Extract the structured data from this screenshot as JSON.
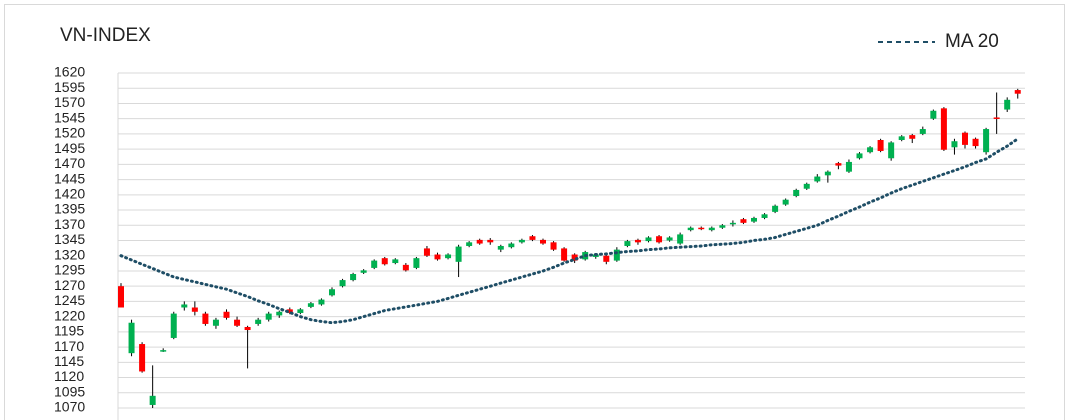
{
  "chart_data": {
    "type": "candlestick",
    "title": "VN-INDEX",
    "ylim": [
      1070,
      1620
    ],
    "yticks": [
      1620,
      1595,
      1570,
      1545,
      1520,
      1495,
      1470,
      1445,
      1420,
      1395,
      1370,
      1345,
      1320,
      1295,
      1270,
      1245,
      1220,
      1195,
      1170,
      1145,
      1120,
      1095,
      1070
    ],
    "grid": true,
    "legend": "top-right",
    "up_color": "#00b050",
    "down_color": "#ff0000",
    "open": [
      1270,
      1160,
      1175,
      1075,
      1163,
      1185,
      1235,
      1235,
      1225,
      1205,
      1228,
      1215,
      1203,
      1208,
      1215,
      1222,
      1232,
      1226,
      1236,
      1240,
      1255,
      1270,
      1280,
      1292,
      1300,
      1316,
      1308,
      1305,
      1300,
      1332,
      1322,
      1316,
      1310,
      1336,
      1346,
      1346,
      1330,
      1334,
      1342,
      1352,
      1346,
      1342,
      1332,
      1322,
      1314,
      1318,
      1320,
      1312,
      1336,
      1346,
      1344,
      1352,
      1345,
      1340,
      1362,
      1366,
      1362,
      1366,
      1372,
      1380,
      1376,
      1382,
      1392,
      1404,
      1418,
      1430,
      1442,
      1452,
      1472,
      1458,
      1480,
      1490,
      1510,
      1480,
      1510,
      1518,
      1520,
      1545,
      1562,
      1498,
      1522,
      1512,
      1490,
      1547,
      1560,
      1592
    ],
    "high": [
      1275,
      1215,
      1178,
      1140,
      1168,
      1228,
      1245,
      1245,
      1228,
      1218,
      1232,
      1220,
      1205,
      1218,
      1228,
      1230,
      1235,
      1234,
      1244,
      1250,
      1268,
      1282,
      1292,
      1298,
      1314,
      1318,
      1316,
      1308,
      1318,
      1336,
      1325,
      1324,
      1338,
      1344,
      1348,
      1349,
      1338,
      1342,
      1348,
      1354,
      1348,
      1344,
      1334,
      1324,
      1328,
      1324,
      1324,
      1334,
      1346,
      1348,
      1352,
      1354,
      1352,
      1358,
      1368,
      1368,
      1368,
      1372,
      1378,
      1382,
      1384,
      1390,
      1404,
      1414,
      1430,
      1440,
      1454,
      1460,
      1474,
      1478,
      1490,
      1500,
      1512,
      1508,
      1518,
      1520,
      1532,
      1560,
      1564,
      1512,
      1524,
      1514,
      1530,
      1588,
      1580,
      1594
    ],
    "low": [
      1235,
      1155,
      1128,
      1070,
      1162,
      1183,
      1230,
      1222,
      1205,
      1200,
      1215,
      1203,
      1135,
      1205,
      1212,
      1218,
      1224,
      1224,
      1234,
      1238,
      1253,
      1268,
      1278,
      1290,
      1298,
      1304,
      1306,
      1294,
      1298,
      1318,
      1312,
      1314,
      1285,
      1334,
      1338,
      1338,
      1326,
      1332,
      1340,
      1344,
      1338,
      1328,
      1310,
      1308,
      1312,
      1315,
      1306,
      1310,
      1334,
      1338,
      1342,
      1340,
      1343,
      1338,
      1360,
      1362,
      1360,
      1364,
      1368,
      1372,
      1374,
      1380,
      1390,
      1402,
      1416,
      1428,
      1440,
      1440,
      1462,
      1456,
      1478,
      1488,
      1490,
      1476,
      1508,
      1505,
      1518,
      1543,
      1492,
      1486,
      1496,
      1496,
      1486,
      1520,
      1556,
      1578
    ],
    "close": [
      1235,
      1210,
      1130,
      1090,
      1165,
      1225,
      1240,
      1228,
      1208,
      1215,
      1218,
      1205,
      1198,
      1215,
      1225,
      1228,
      1226,
      1232,
      1242,
      1248,
      1265,
      1280,
      1290,
      1296,
      1312,
      1306,
      1314,
      1296,
      1316,
      1320,
      1314,
      1322,
      1335,
      1342,
      1340,
      1342,
      1336,
      1340,
      1346,
      1346,
      1340,
      1330,
      1312,
      1312,
      1326,
      1322,
      1310,
      1330,
      1344,
      1342,
      1350,
      1342,
      1350,
      1355,
      1366,
      1364,
      1366,
      1370,
      1374,
      1374,
      1382,
      1388,
      1402,
      1412,
      1428,
      1438,
      1450,
      1458,
      1468,
      1474,
      1488,
      1498,
      1492,
      1506,
      1516,
      1512,
      1528,
      1558,
      1494,
      1508,
      1502,
      1500,
      1528,
      1545,
      1576,
      1586
    ],
    "series": [
      {
        "name": "MA 20",
        "color": "#1f4e66",
        "values": [
          1320,
          1313,
          1306,
          1299,
          1292,
          1285,
          1281,
          1277,
          1273,
          1269,
          1265,
          1259,
          1253,
          1246,
          1240,
          1233,
          1227,
          1220,
          1215,
          1212,
          1210,
          1212,
          1215,
          1220,
          1225,
          1230,
          1233,
          1236,
          1239,
          1242,
          1245,
          1250,
          1255,
          1260,
          1265,
          1270,
          1275,
          1280,
          1285,
          1290,
          1295,
          1301,
          1308,
          1314,
          1320,
          1322,
          1323,
          1325,
          1327,
          1328,
          1330,
          1331,
          1333,
          1334,
          1335,
          1336,
          1338,
          1339,
          1340,
          1342,
          1345,
          1347,
          1350,
          1355,
          1360,
          1365,
          1370,
          1378,
          1385,
          1393,
          1400,
          1408,
          1415,
          1423,
          1430,
          1436,
          1442,
          1448,
          1454,
          1460,
          1466,
          1473,
          1479,
          1490,
          1500,
          1512
        ]
      }
    ]
  }
}
